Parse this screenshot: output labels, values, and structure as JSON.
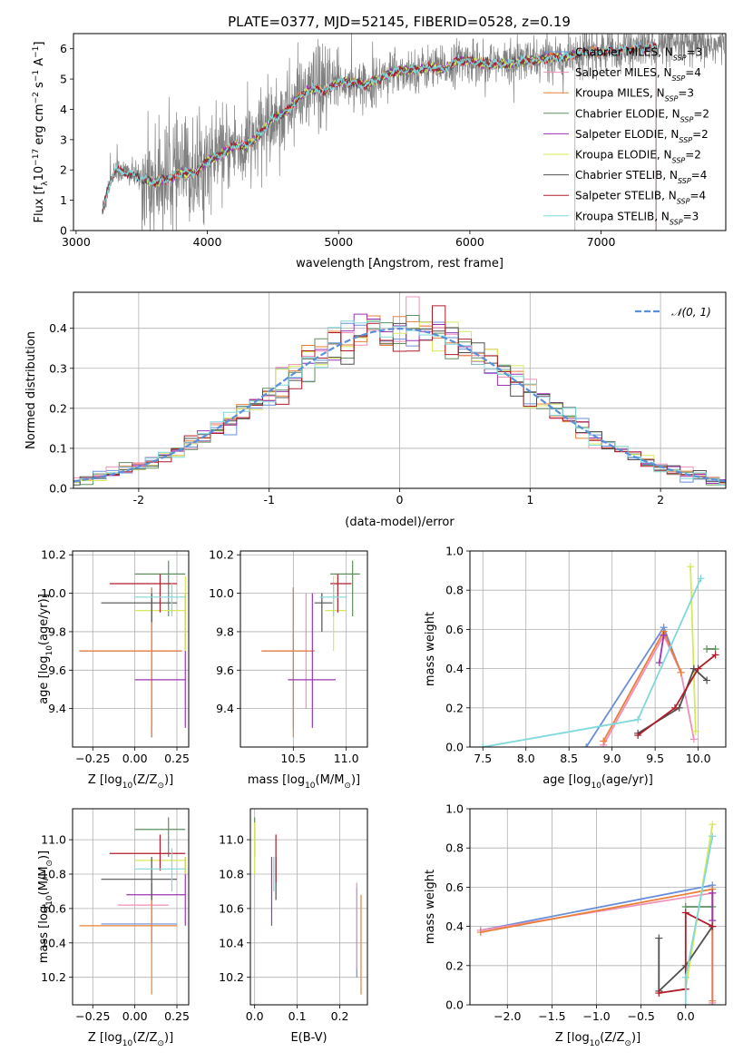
{
  "figure_title": "PLATE=0377, MJD=52145, FIBERID=0528, z=0.19",
  "colors": {
    "Chabrier MILES": "#6a8fd8",
    "Salpeter MILES": "#f08fb8",
    "Kroupa MILES": "#e8803a",
    "Chabrier ELODIE": "#5f8f5f",
    "Salpeter ELODIE": "#9b35b5",
    "Kroupa ELODIE": "#d8e85a",
    "Chabrier STELIB": "#505050",
    "Salpeter STELIB": "#b01c2a",
    "Kroupa STELIB": "#7fd8dc",
    "data": "#808080",
    "normal": "#5b8fd6"
  },
  "legend_spectrum": [
    {
      "name": "Chabrier MILES",
      "pre": "Chabrier MILES, N",
      "sub": "SSP",
      "post": "=3"
    },
    {
      "name": "Salpeter MILES",
      "pre": "Salpeter MILES, N",
      "sub": "SSP",
      "post": "=4"
    },
    {
      "name": "Kroupa MILES",
      "pre": "Kroupa MILES, N",
      "sub": "SSP",
      "post": "=3"
    },
    {
      "name": "Chabrier ELODIE",
      "pre": "Chabrier ELODIE, N",
      "sub": "SSP",
      "post": "=2"
    },
    {
      "name": "Salpeter ELODIE",
      "pre": "Salpeter ELODIE, N",
      "sub": "SSP",
      "post": "=2"
    },
    {
      "name": "Kroupa ELODIE",
      "pre": "Kroupa ELODIE, N",
      "sub": "SSP",
      "post": "=2"
    },
    {
      "name": "Chabrier STELIB",
      "pre": "Chabrier STELIB, N",
      "sub": "SSP",
      "post": "=4"
    },
    {
      "name": "Salpeter STELIB",
      "pre": "Salpeter STELIB, N",
      "sub": "SSP",
      "post": "=4"
    },
    {
      "name": "Kroupa STELIB",
      "pre": "Kroupa STELIB, N",
      "sub": "SSP",
      "post": "=3"
    }
  ],
  "legend_hist": {
    "label": "𝒩(0, 1)"
  },
  "chart_data": [
    {
      "id": "spectrum",
      "type": "line",
      "title": "PLATE=0377, MJD=52145, FIBERID=0528, z=0.19",
      "xlabel": "wavelength [Angstrom, rest frame]",
      "ylabel_parts": {
        "a": "Flux [f",
        "sub": "λ",
        "b": "10",
        "sup1": "−17",
        "c": " erg cm",
        "sup2": "−2",
        "d": " s",
        "sup3": "−1",
        "e": " A",
        "sup4": "−1",
        "f": "]"
      },
      "xlim": [
        2980,
        7950
      ],
      "ylim": [
        0,
        6.5
      ],
      "xticks": [
        3000,
        4000,
        5000,
        6000,
        7000
      ],
      "yticks": [
        0,
        1,
        2,
        3,
        4,
        5,
        6
      ],
      "grid": false,
      "legend": "upper right",
      "continuum_points": [
        [
          3200,
          0.6
        ],
        [
          3250,
          1.5
        ],
        [
          3300,
          2.0
        ],
        [
          3400,
          1.9
        ],
        [
          3500,
          1.7
        ],
        [
          3600,
          1.6
        ],
        [
          3700,
          1.7
        ],
        [
          3800,
          1.9
        ],
        [
          3900,
          1.9
        ],
        [
          4000,
          2.3
        ],
        [
          4100,
          2.5
        ],
        [
          4200,
          2.8
        ],
        [
          4300,
          2.8
        ],
        [
          4400,
          3.2
        ],
        [
          4500,
          3.7
        ],
        [
          4600,
          3.9
        ],
        [
          4700,
          4.4
        ],
        [
          4800,
          4.7
        ],
        [
          4900,
          4.6
        ],
        [
          5000,
          4.9
        ],
        [
          5100,
          4.9
        ],
        [
          5200,
          4.8
        ],
        [
          5300,
          5.0
        ],
        [
          5400,
          5.2
        ],
        [
          5500,
          5.3
        ],
        [
          5600,
          5.3
        ],
        [
          5700,
          5.4
        ],
        [
          5800,
          5.3
        ],
        [
          5900,
          5.6
        ],
        [
          6000,
          5.6
        ],
        [
          6100,
          5.5
        ],
        [
          6200,
          5.5
        ],
        [
          6300,
          5.5
        ],
        [
          6400,
          5.6
        ],
        [
          6500,
          5.6
        ],
        [
          6600,
          5.7
        ],
        [
          6700,
          5.7
        ],
        [
          6800,
          5.8
        ],
        [
          6900,
          5.9
        ],
        [
          7000,
          5.9
        ],
        [
          7100,
          5.9
        ],
        [
          7200,
          6.0
        ],
        [
          7300,
          6.0
        ],
        [
          7400,
          6.1
        ]
      ],
      "model_end_wavelengths": [
        7420,
        7420,
        7420,
        6800,
        6800,
        6800,
        7420,
        7420,
        7420
      ]
    },
    {
      "id": "residuals",
      "type": "histogram",
      "xlabel": "(data-model)/error",
      "ylabel": "Normed distribution",
      "xlim": [
        -2.5,
        2.5
      ],
      "ylim": [
        0,
        0.49
      ],
      "xticks": [
        -2,
        -1,
        0,
        1,
        2
      ],
      "yticks": [
        0.0,
        0.1,
        0.2,
        0.3,
        0.4
      ],
      "grid": true,
      "legend": "upper right",
      "bin_width": 0.1
    },
    {
      "id": "age_vs_Z",
      "type": "errorbar",
      "xlabel_parts": {
        "a": "Z [log",
        "sub": "10",
        "b": "(Z/Z",
        "sub2": "⊙",
        "c": ")]"
      },
      "ylabel_parts": {
        "a": "age  [log",
        "sub": "10",
        "b": "(age/yr)]"
      },
      "xlim": [
        -0.37,
        0.32
      ],
      "ylim": [
        9.2,
        10.22
      ],
      "xticks": [
        -0.25,
        0.0,
        0.25
      ],
      "xticklabels": [
        "−0.25",
        "0.00",
        "0.25"
      ],
      "yticks": [
        9.4,
        9.6,
        9.8,
        10.0,
        10.2
      ],
      "grid": true,
      "points": [
        {
          "s": "Chabrier MILES",
          "x": 0.1,
          "xlo": -0.33,
          "xhi": 0.28,
          "y": 9.7,
          "ylo": 9.25,
          "yhi": 10.03
        },
        {
          "s": "Salpeter MILES",
          "x": 0.1,
          "xlo": -0.33,
          "xhi": 0.28,
          "y": 9.7,
          "ylo": 9.3,
          "yhi": 10.0
        },
        {
          "s": "Kroupa MILES",
          "x": 0.1,
          "xlo": -0.33,
          "xhi": 0.28,
          "y": 9.7,
          "ylo": 9.25,
          "yhi": 10.03
        },
        {
          "s": "Chabrier ELODIE",
          "x": 0.2,
          "xlo": 0.0,
          "xhi": 0.3,
          "y": 10.1,
          "ylo": 9.88,
          "yhi": 10.17
        },
        {
          "s": "Salpeter ELODIE",
          "x": 0.3,
          "xlo": 0.0,
          "xhi": 0.3,
          "y": 9.55,
          "ylo": 9.3,
          "yhi": 10.0
        },
        {
          "s": "Kroupa ELODIE",
          "x": 0.3,
          "xlo": 0.0,
          "xhi": 0.3,
          "y": 9.91,
          "ylo": 9.7,
          "yhi": 10.09
        },
        {
          "s": "Chabrier STELIB",
          "x": 0.1,
          "xlo": -0.2,
          "xhi": 0.25,
          "y": 9.95,
          "ylo": 9.85,
          "yhi": 10.0
        },
        {
          "s": "Salpeter STELIB",
          "x": 0.15,
          "xlo": -0.15,
          "xhi": 0.25,
          "y": 10.05,
          "ylo": 9.9,
          "yhi": 10.1
        },
        {
          "s": "Kroupa STELIB",
          "x": 0.22,
          "xlo": 0.0,
          "xhi": 0.3,
          "y": 9.98,
          "ylo": 9.88,
          "yhi": 10.05
        }
      ]
    },
    {
      "id": "age_vs_mass",
      "type": "errorbar",
      "xlabel_parts": {
        "a": "mass [log",
        "sub": "10",
        "b": "(M/M",
        "sub2": "⊙",
        "c": ")]"
      },
      "xlim": [
        10.0,
        11.2
      ],
      "ylim": [
        9.2,
        10.22
      ],
      "xticks": [
        10.5,
        11.0
      ],
      "xticklabels": [
        "10.5",
        "11.0"
      ],
      "yticks": [
        9.4,
        9.6,
        9.8,
        10.0,
        10.2
      ],
      "grid": true,
      "points": [
        {
          "s": "Chabrier MILES",
          "x": 10.5,
          "xlo": 10.2,
          "xhi": 10.7,
          "y": 9.7,
          "ylo": 9.3,
          "yhi": 10.03
        },
        {
          "s": "Salpeter MILES",
          "x": 10.62,
          "xlo": 10.2,
          "xhi": 10.7,
          "y": 9.7,
          "ylo": 9.4,
          "yhi": 10.0
        },
        {
          "s": "Kroupa MILES",
          "x": 10.5,
          "xlo": 10.2,
          "xhi": 10.7,
          "y": 9.7,
          "ylo": 9.25,
          "yhi": 10.03
        },
        {
          "s": "Chabrier ELODIE",
          "x": 11.06,
          "xlo": 10.85,
          "xhi": 11.13,
          "y": 10.1,
          "ylo": 9.88,
          "yhi": 10.17
        },
        {
          "s": "Salpeter ELODIE",
          "x": 10.68,
          "xlo": 10.45,
          "xhi": 10.9,
          "y": 9.55,
          "ylo": 9.3,
          "yhi": 10.0
        },
        {
          "s": "Kroupa ELODIE",
          "x": 10.88,
          "xlo": 10.8,
          "xhi": 11.0,
          "y": 9.91,
          "ylo": 9.7,
          "yhi": 10.09
        },
        {
          "s": "Chabrier STELIB",
          "x": 10.77,
          "xlo": 10.7,
          "xhi": 10.87,
          "y": 9.95,
          "ylo": 9.8,
          "yhi": 10.0
        },
        {
          "s": "Salpeter STELIB",
          "x": 10.92,
          "xlo": 10.85,
          "xhi": 11.05,
          "y": 10.05,
          "ylo": 9.9,
          "yhi": 10.1
        },
        {
          "s": "Kroupa STELIB",
          "x": 10.88,
          "xlo": 10.75,
          "xhi": 11.0,
          "y": 9.98,
          "ylo": 9.88,
          "yhi": 10.05
        }
      ]
    },
    {
      "id": "weight_vs_age",
      "type": "line",
      "xlabel_parts": {
        "a": "age  [log",
        "sub": "10",
        "b": "(age/yr)]"
      },
      "ylabel": "mass weight",
      "xlim": [
        7.35,
        10.32
      ],
      "ylim": [
        0,
        1.0
      ],
      "xticks": [
        7.5,
        8.0,
        8.5,
        9.0,
        9.5,
        10.0
      ],
      "xticklabels": [
        "7.5",
        "8.0",
        "8.5",
        "9.0",
        "9.5",
        "10.0"
      ],
      "yticks": [
        0.0,
        0.2,
        0.4,
        0.6,
        0.8,
        1.0
      ],
      "grid": true,
      "series": [
        {
          "s": "Chabrier MILES",
          "x": [
            8.7,
            9.6,
            9.8
          ],
          "y": [
            0.0,
            0.61,
            0.38
          ]
        },
        {
          "s": "Salpeter MILES",
          "x": [
            8.9,
            9.6,
            9.8,
            9.95
          ],
          "y": [
            0.01,
            0.57,
            0.38,
            0.04
          ]
        },
        {
          "s": "Kroupa MILES",
          "x": [
            8.9,
            9.6,
            9.8
          ],
          "y": [
            0.03,
            0.59,
            0.38
          ]
        },
        {
          "s": "Chabrier ELODIE",
          "x": [
            10.1,
            10.2
          ],
          "y": [
            0.5,
            0.5
          ]
        },
        {
          "s": "Salpeter ELODIE",
          "x": [
            9.55,
            9.6
          ],
          "y": [
            0.43,
            0.57
          ]
        },
        {
          "s": "Kroupa ELODIE",
          "x": [
            9.91,
            9.97
          ],
          "y": [
            0.92,
            0.08
          ]
        },
        {
          "s": "Chabrier STELIB",
          "x": [
            9.3,
            9.78,
            9.95,
            10.1
          ],
          "y": [
            0.07,
            0.2,
            0.4,
            0.34
          ]
        },
        {
          "s": "Salpeter STELIB",
          "x": [
            9.3,
            9.73,
            10.0,
            10.2
          ],
          "y": [
            0.06,
            0.2,
            0.4,
            0.47
          ]
        },
        {
          "s": "Kroupa STELIB",
          "x": [
            7.5,
            9.3,
            10.03
          ],
          "y": [
            0.0,
            0.14,
            0.86
          ]
        }
      ]
    },
    {
      "id": "mass_vs_Z",
      "type": "errorbar",
      "xlabel_parts": {
        "a": "Z [log",
        "sub": "10",
        "b": "(Z/Z",
        "sub2": "⊙",
        "c": ")]"
      },
      "ylabel_parts": {
        "a": "mass [log",
        "sub": "10",
        "b": "(M/M",
        "sub2": "⊙",
        "c": ")]"
      },
      "xlim": [
        -0.37,
        0.32
      ],
      "ylim": [
        10.04,
        11.18
      ],
      "xticks": [
        -0.25,
        0.0,
        0.25
      ],
      "xticklabels": [
        "−0.25",
        "0.00",
        "0.25"
      ],
      "yticks": [
        10.2,
        10.4,
        10.6,
        10.8,
        11.0
      ],
      "grid": true,
      "points": [
        {
          "s": "Chabrier MILES",
          "x": 0.1,
          "xlo": -0.2,
          "xhi": 0.25,
          "y": 10.51,
          "ylo": 10.4,
          "yhi": 10.75
        },
        {
          "s": "Salpeter MILES",
          "x": 0.1,
          "xlo": -0.1,
          "xhi": 0.2,
          "y": 10.62,
          "ylo": 10.5,
          "yhi": 10.75
        },
        {
          "s": "Kroupa MILES",
          "x": 0.1,
          "xlo": -0.33,
          "xhi": 0.25,
          "y": 10.5,
          "ylo": 10.1,
          "yhi": 10.7
        },
        {
          "s": "Chabrier ELODIE",
          "x": 0.2,
          "xlo": 0.0,
          "xhi": 0.3,
          "y": 11.06,
          "ylo": 10.9,
          "yhi": 11.13
        },
        {
          "s": "Salpeter ELODIE",
          "x": 0.3,
          "xlo": -0.05,
          "xhi": 0.3,
          "y": 10.68,
          "ylo": 10.5,
          "yhi": 10.9
        },
        {
          "s": "Kroupa ELODIE",
          "x": 0.3,
          "xlo": 0.0,
          "xhi": 0.3,
          "y": 10.88,
          "ylo": 10.8,
          "yhi": 10.9
        },
        {
          "s": "Chabrier STELIB",
          "x": 0.1,
          "xlo": -0.2,
          "xhi": 0.25,
          "y": 10.77,
          "ylo": 10.65,
          "yhi": 10.9
        },
        {
          "s": "Salpeter STELIB",
          "x": 0.15,
          "xlo": -0.15,
          "xhi": 0.3,
          "y": 10.92,
          "ylo": 10.82,
          "yhi": 11.03
        },
        {
          "s": "Kroupa STELIB",
          "x": 0.22,
          "xlo": 0.0,
          "xhi": 0.3,
          "y": 10.83,
          "ylo": 10.7,
          "yhi": 10.95
        }
      ]
    },
    {
      "id": "mass_vs_ebv",
      "type": "errorbar",
      "xlabel": "E(B-V)",
      "xlim": [
        -0.01,
        0.265
      ],
      "ylim": [
        10.04,
        11.18
      ],
      "xticks": [
        0.0,
        0.1,
        0.2
      ],
      "xticklabels": [
        "0.0",
        "0.1",
        "0.2"
      ],
      "yticks": [
        10.2,
        10.4,
        10.6,
        10.8,
        11.0
      ],
      "grid": true,
      "points": [
        {
          "s": "Chabrier MILES",
          "x": 0.24,
          "xlo": 0.24,
          "xhi": 0.24,
          "y": 10.51,
          "ylo": 10.2,
          "yhi": 10.72
        },
        {
          "s": "Salpeter MILES",
          "x": 0.24,
          "xlo": 0.24,
          "xhi": 0.24,
          "y": 10.62,
          "ylo": 10.25,
          "yhi": 10.75
        },
        {
          "s": "Kroupa MILES",
          "x": 0.25,
          "xlo": 0.25,
          "xhi": 0.25,
          "y": 10.5,
          "ylo": 10.1,
          "yhi": 10.68
        },
        {
          "s": "Chabrier ELODIE",
          "x": 0.0,
          "xlo": 0.0,
          "xhi": 0.0,
          "y": 11.06,
          "ylo": 10.9,
          "yhi": 11.13
        },
        {
          "s": "Salpeter ELODIE",
          "x": 0.04,
          "xlo": 0.04,
          "xhi": 0.04,
          "y": 10.68,
          "ylo": 10.5,
          "yhi": 10.9
        },
        {
          "s": "Kroupa ELODIE",
          "x": 0.0,
          "xlo": 0.0,
          "xhi": 0.0,
          "y": 10.88,
          "ylo": 10.8,
          "yhi": 11.1
        },
        {
          "s": "Chabrier STELIB",
          "x": 0.05,
          "xlo": 0.05,
          "xhi": 0.05,
          "y": 10.77,
          "ylo": 10.65,
          "yhi": 10.9
        },
        {
          "s": "Salpeter STELIB",
          "x": 0.05,
          "xlo": 0.05,
          "xhi": 0.05,
          "y": 10.92,
          "ylo": 10.75,
          "yhi": 11.03
        },
        {
          "s": "Kroupa STELIB",
          "x": 0.045,
          "xlo": 0.045,
          "xhi": 0.045,
          "y": 10.83,
          "ylo": 10.7,
          "yhi": 10.9
        }
      ]
    },
    {
      "id": "weight_vs_Z",
      "type": "line",
      "xlabel_parts": {
        "a": "Z [log",
        "sub": "10",
        "b": "(Z/Z",
        "sub2": "⊙",
        "c": ")]"
      },
      "ylabel": "mass weight",
      "xlim": [
        -2.42,
        0.45
      ],
      "ylim": [
        0,
        1.0
      ],
      "xticks": [
        -2.0,
        -1.5,
        -1.0,
        -0.5,
        0.0
      ],
      "xticklabels": [
        "−2.0",
        "−1.5",
        "−1.0",
        "−0.5",
        "0.0"
      ],
      "yticks": [
        0.0,
        0.2,
        0.4,
        0.6,
        0.8,
        1.0
      ],
      "grid": true,
      "series": [
        {
          "s": "Chabrier MILES",
          "x": [
            -2.3,
            0.3,
            0.3
          ],
          "y": [
            0.38,
            0.61,
            0.0
          ]
        },
        {
          "s": "Salpeter MILES",
          "x": [
            -2.3,
            0.3,
            0.3
          ],
          "y": [
            0.38,
            0.57,
            0.01
          ]
        },
        {
          "s": "Kroupa MILES",
          "x": [
            -2.3,
            0.3,
            0.3
          ],
          "y": [
            0.37,
            0.59,
            0.02
          ]
        },
        {
          "s": "Chabrier ELODIE",
          "x": [
            0.0,
            0.3
          ],
          "y": [
            0.5,
            0.5
          ]
        },
        {
          "s": "Salpeter ELODIE",
          "x": [
            0.3,
            0.3
          ],
          "y": [
            0.43,
            0.57
          ]
        },
        {
          "s": "Kroupa ELODIE",
          "x": [
            0.0,
            0.3
          ],
          "y": [
            0.08,
            0.92
          ]
        },
        {
          "s": "Chabrier STELIB",
          "x": [
            -0.3,
            -0.3,
            0.0,
            0.3
          ],
          "y": [
            0.34,
            0.07,
            0.2,
            0.4
          ]
        },
        {
          "s": "Salpeter STELIB",
          "x": [
            -0.3,
            0.0,
            0.0,
            0.3
          ],
          "y": [
            0.06,
            0.08,
            0.47,
            0.4
          ]
        },
        {
          "s": "Kroupa STELIB",
          "x": [
            0.0,
            0.0,
            0.3
          ],
          "y": [
            0.0,
            0.14,
            0.86
          ]
        }
      ]
    }
  ]
}
